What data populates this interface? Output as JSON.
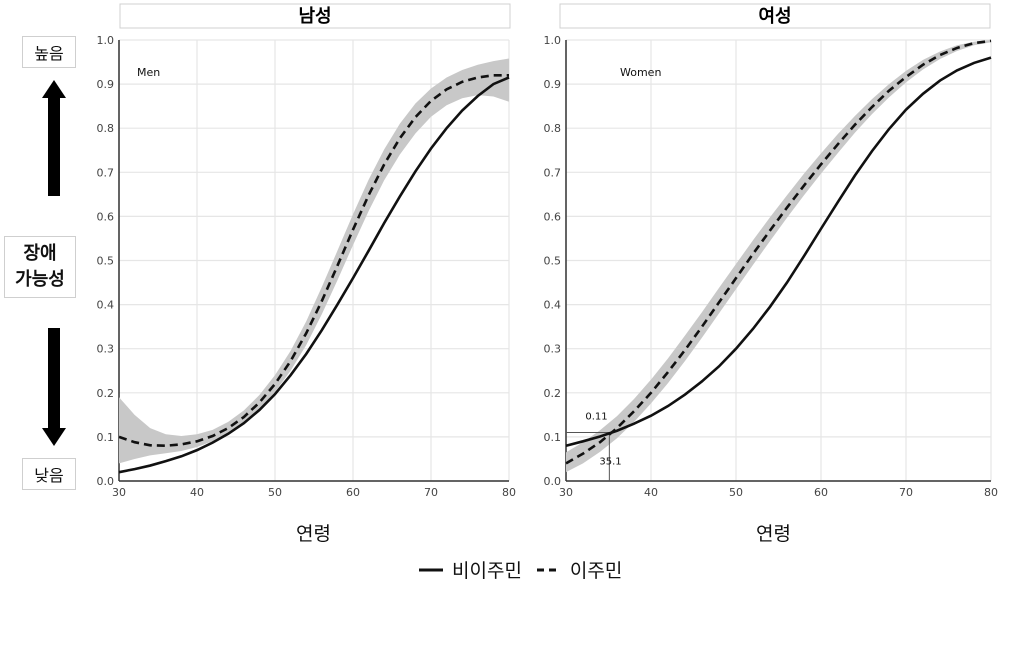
{
  "y_axis_label": {
    "line1": "장애",
    "line2": "가능성"
  },
  "high_label": "높음",
  "low_label": "낮음",
  "legend": {
    "non_immigrant": "비이주민",
    "immigrant": "이주민"
  },
  "colors": {
    "line": "#111111",
    "band": "#c8c8c8",
    "grid": "#e6e6e6"
  },
  "chart_data": [
    {
      "type": "line",
      "title": "남성",
      "inner_label": "Men",
      "xlabel": "연령",
      "xlim": [
        30,
        80
      ],
      "ylim": [
        0,
        1
      ],
      "xticks": [
        30,
        40,
        50,
        60,
        70,
        80
      ],
      "yticks": [
        "0.0",
        "0.1",
        "0.2",
        "0.3",
        "0.4",
        "0.5",
        "0.6",
        "0.7",
        "0.8",
        "0.9",
        "1.0"
      ],
      "x": [
        30,
        32,
        34,
        36,
        38,
        40,
        42,
        44,
        46,
        48,
        50,
        52,
        54,
        56,
        58,
        60,
        62,
        64,
        66,
        68,
        70,
        72,
        74,
        76,
        78,
        80
      ],
      "series": [
        {
          "name": "비이주민",
          "style": "solid",
          "values": [
            0.02,
            0.027,
            0.035,
            0.045,
            0.056,
            0.07,
            0.087,
            0.107,
            0.131,
            0.161,
            0.197,
            0.24,
            0.288,
            0.342,
            0.4,
            0.46,
            0.522,
            0.585,
            0.645,
            0.702,
            0.754,
            0.8,
            0.84,
            0.873,
            0.9,
            0.915
          ]
        },
        {
          "name": "이주민",
          "style": "dashed",
          "values": [
            0.1,
            0.088,
            0.081,
            0.08,
            0.083,
            0.09,
            0.102,
            0.12,
            0.145,
            0.178,
            0.22,
            0.272,
            0.335,
            0.408,
            0.488,
            0.57,
            0.648,
            0.718,
            0.777,
            0.825,
            0.862,
            0.888,
            0.905,
            0.915,
            0.92,
            0.92
          ],
          "band_lower": [
            0.04,
            0.05,
            0.058,
            0.063,
            0.068,
            0.077,
            0.09,
            0.107,
            0.131,
            0.162,
            0.202,
            0.25,
            0.308,
            0.378,
            0.455,
            0.535,
            0.612,
            0.682,
            0.74,
            0.788,
            0.826,
            0.852,
            0.868,
            0.875,
            0.872,
            0.86
          ],
          "band_upper": [
            0.19,
            0.15,
            0.12,
            0.106,
            0.102,
            0.106,
            0.116,
            0.134,
            0.16,
            0.195,
            0.24,
            0.295,
            0.362,
            0.44,
            0.522,
            0.605,
            0.683,
            0.752,
            0.81,
            0.856,
            0.89,
            0.915,
            0.932,
            0.944,
            0.952,
            0.958
          ]
        }
      ]
    },
    {
      "type": "line",
      "title": "여성",
      "inner_label": "Women",
      "xlabel": "연령",
      "xlim": [
        30,
        80
      ],
      "ylim": [
        0,
        1
      ],
      "xticks": [
        30,
        40,
        50,
        60,
        70,
        80
      ],
      "yticks": [
        "0.0",
        "0.1",
        "0.2",
        "0.3",
        "0.4",
        "0.5",
        "0.6",
        "0.7",
        "0.8",
        "0.9",
        "1.0"
      ],
      "x": [
        30,
        32,
        34,
        36,
        38,
        40,
        42,
        44,
        46,
        48,
        50,
        52,
        54,
        56,
        58,
        60,
        62,
        64,
        66,
        68,
        70,
        72,
        74,
        76,
        78,
        80
      ],
      "annotations": [
        {
          "label": "0.11",
          "x": 35.1,
          "y": 0.11
        },
        {
          "label": "35.1",
          "x": 35.1,
          "y": 0.11
        }
      ],
      "series": [
        {
          "name": "비이주민",
          "style": "solid",
          "values": [
            0.08,
            0.09,
            0.101,
            0.114,
            0.13,
            0.148,
            0.17,
            0.196,
            0.226,
            0.26,
            0.3,
            0.345,
            0.395,
            0.45,
            0.51,
            0.572,
            0.633,
            0.693,
            0.748,
            0.798,
            0.842,
            0.878,
            0.908,
            0.931,
            0.948,
            0.96
          ]
        },
        {
          "name": "이주민",
          "style": "dashed",
          "values": [
            0.04,
            0.062,
            0.088,
            0.12,
            0.158,
            0.2,
            0.247,
            0.297,
            0.35,
            0.405,
            0.46,
            0.515,
            0.568,
            0.62,
            0.67,
            0.718,
            0.764,
            0.808,
            0.848,
            0.885,
            0.916,
            0.944,
            0.966,
            0.982,
            0.993,
            0.998
          ],
          "band_lower": [
            0.02,
            0.04,
            0.066,
            0.097,
            0.134,
            0.176,
            0.222,
            0.272,
            0.325,
            0.38,
            0.435,
            0.49,
            0.544,
            0.597,
            0.648,
            0.697,
            0.744,
            0.79,
            0.832,
            0.87,
            0.904,
            0.933,
            0.957,
            0.975,
            0.988,
            0.995
          ],
          "band_upper": [
            0.065,
            0.088,
            0.115,
            0.147,
            0.186,
            0.23,
            0.278,
            0.33,
            0.383,
            0.438,
            0.492,
            0.546,
            0.598,
            0.648,
            0.697,
            0.743,
            0.787,
            0.828,
            0.866,
            0.9,
            0.93,
            0.955,
            0.974,
            0.988,
            0.996,
            1.0
          ]
        }
      ]
    }
  ]
}
